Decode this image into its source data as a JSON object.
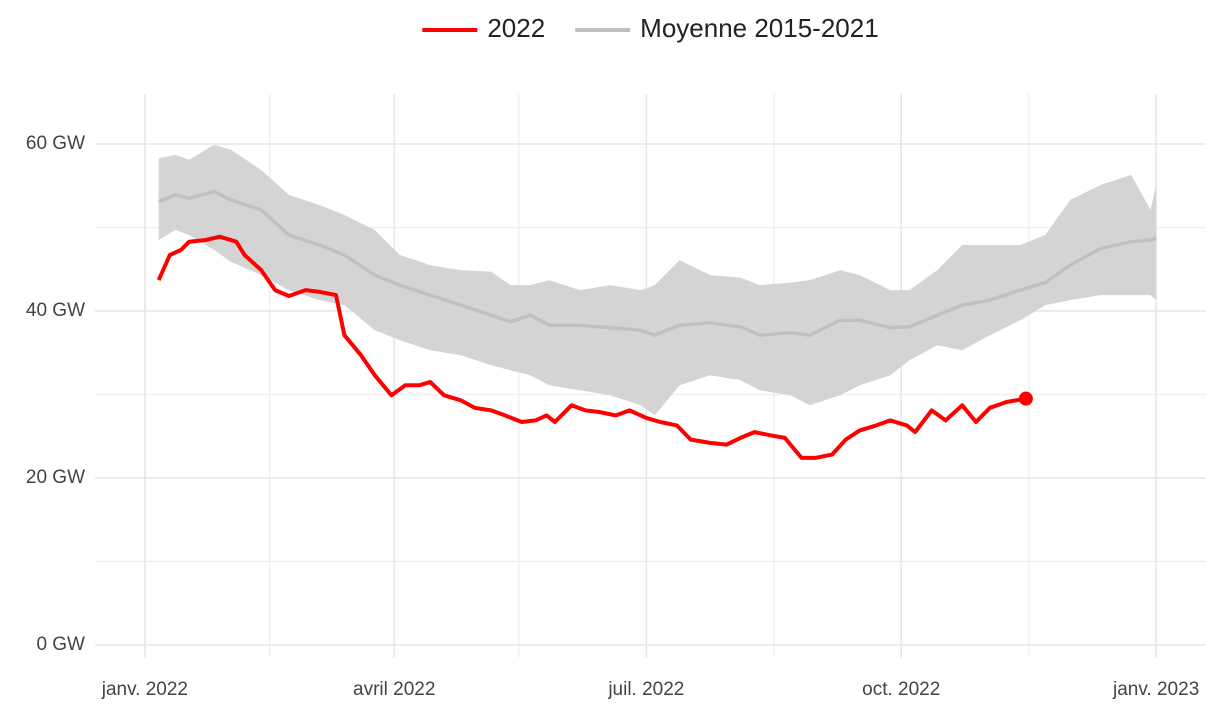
{
  "chart_data": {
    "type": "line",
    "xlim": [
      -18,
      383
    ],
    "xticks": [
      {
        "value": 0,
        "label": "janv. 2022"
      },
      {
        "value": 90,
        "label": "avril 2022"
      },
      {
        "value": 181,
        "label": "juil. 2022"
      },
      {
        "value": 273,
        "label": "oct. 2022"
      },
      {
        "value": 365,
        "label": "janv. 2023"
      }
    ],
    "x_minor_ticks": [
      45,
      135,
      227,
      319
    ],
    "ylim": [
      -1.5,
      66
    ],
    "yticks": [
      {
        "value": 0,
        "label": "0 GW"
      },
      {
        "value": 20,
        "label": "20 GW"
      },
      {
        "value": 40,
        "label": "40 GW"
      },
      {
        "value": 60,
        "label": "60 GW"
      }
    ],
    "y_minor_ticks": [
      10,
      30,
      50
    ],
    "grid": true,
    "legend": "top",
    "end_marker": true,
    "series": [
      {
        "name": "2022",
        "color": "#ff0000",
        "x": [
          5,
          9,
          13,
          16,
          22,
          27,
          33,
          36,
          42,
          47,
          52,
          58,
          63,
          69,
          72,
          78,
          83,
          89,
          94,
          99,
          103,
          108,
          114,
          119,
          125,
          130,
          136,
          141,
          145,
          148,
          154,
          159,
          164,
          170,
          175,
          181,
          186,
          192,
          197,
          204,
          210,
          215,
          220,
          226,
          231,
          237,
          242,
          248,
          253,
          258,
          264,
          269,
          275,
          278,
          284,
          289,
          295,
          300,
          305,
          311,
          318
        ],
        "values": [
          43.7,
          46.7,
          47.3,
          48.3,
          48.5,
          48.9,
          48.3,
          46.7,
          44.9,
          42.5,
          41.8,
          42.5,
          42.3,
          41.9,
          37.1,
          34.7,
          32.3,
          29.9,
          31.1,
          31.1,
          31.5,
          29.9,
          29.3,
          28.4,
          28.1,
          27.5,
          26.7,
          26.9,
          27.5,
          26.7,
          28.7,
          28.1,
          27.9,
          27.5,
          28.1,
          27.2,
          26.7,
          26.3,
          24.6,
          24.2,
          24.0,
          24.8,
          25.5,
          25.1,
          24.8,
          22.4,
          22.4,
          22.8,
          24.6,
          25.7,
          26.3,
          26.9,
          26.3,
          25.5,
          28.1,
          26.9,
          28.7,
          26.7,
          28.4,
          29.1,
          29.5
        ]
      },
      {
        "name": "Moyenne 2015-2021",
        "color": "#c0c0c0",
        "band_color": "#d4d4d4",
        "x": [
          5,
          11,
          16,
          25,
          31,
          42,
          52,
          63,
          72,
          83,
          92,
          103,
          114,
          125,
          132,
          139,
          146,
          157,
          168,
          179,
          184,
          193,
          204,
          215,
          222,
          233,
          240,
          251,
          258,
          269,
          276,
          286,
          295,
          305,
          316,
          325,
          334,
          345,
          356,
          363,
          365
        ],
        "values": [
          53.1,
          53.9,
          53.5,
          54.3,
          53.3,
          52.1,
          49.1,
          47.9,
          46.7,
          44.3,
          43.1,
          41.9,
          40.7,
          39.5,
          38.7,
          39.5,
          38.3,
          38.3,
          38.0,
          37.7,
          37.1,
          38.3,
          38.6,
          38.1,
          37.1,
          37.4,
          37.1,
          38.9,
          38.9,
          38.0,
          38.1,
          39.5,
          40.7,
          41.3,
          42.5,
          43.4,
          45.5,
          47.5,
          48.3,
          48.5,
          48.7
        ],
        "upper": [
          58.3,
          58.7,
          58.1,
          59.9,
          59.3,
          56.9,
          53.9,
          52.7,
          51.5,
          49.7,
          46.7,
          45.5,
          44.9,
          44.7,
          43.1,
          43.1,
          43.7,
          42.5,
          43.1,
          42.5,
          43.1,
          46.1,
          44.3,
          44.0,
          43.1,
          43.4,
          43.7,
          44.9,
          44.3,
          42.5,
          42.5,
          44.9,
          47.9,
          47.9,
          47.9,
          49.1,
          53.3,
          55.1,
          56.3,
          52.1,
          55.1
        ],
        "lower": [
          48.5,
          49.7,
          49.1,
          47.3,
          45.9,
          44.3,
          42.5,
          41.3,
          40.7,
          37.7,
          36.5,
          35.3,
          34.7,
          33.5,
          32.9,
          32.3,
          31.1,
          30.5,
          29.9,
          28.7,
          27.5,
          31.1,
          32.3,
          31.7,
          30.5,
          29.9,
          28.7,
          29.9,
          31.1,
          32.3,
          34.1,
          35.9,
          35.3,
          37.1,
          38.9,
          40.7,
          41.3,
          41.9,
          41.9,
          41.9,
          41.3
        ]
      }
    ]
  }
}
